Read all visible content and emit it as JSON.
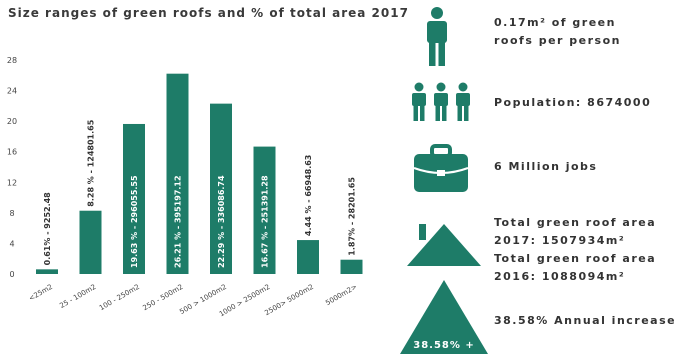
{
  "colors": {
    "accent": "#1e7c68"
  },
  "chart_data": {
    "type": "bar",
    "title": "Size ranges of green roofs and % of total area 2017",
    "xlabel": "",
    "ylabel": "",
    "ylim": [
      0,
      28
    ],
    "yticks": [
      0,
      4,
      8,
      12,
      16,
      20,
      24,
      28
    ],
    "grid": false,
    "categories": [
      "<25m2",
      "25 - 100m2",
      "100 - 250m2",
      "250 - 500m2",
      "500 > 1000m2",
      "1000 > 2500m2",
      "2500> 5000m2",
      "5000m2>"
    ],
    "values": [
      0.61,
      8.28,
      19.63,
      26.21,
      22.29,
      16.67,
      4.44,
      1.87
    ],
    "bar_labels": [
      "0.61% - 9252.48",
      "8.28 % - 124801.65",
      "19.63 % - 296055.55",
      "26.21 % - 395197.12",
      "22.29 % - 336086.74",
      "16.67 % - 251391.28",
      "4.44 % - 66948.63",
      "1.87% - 28201.65"
    ]
  },
  "stats": {
    "per_person": {
      "line1": "0.17m² of green",
      "line2": "roofs per person",
      "icon": "person-icon"
    },
    "population": {
      "text": "Population: 8674000",
      "icon": "people-icon"
    },
    "jobs": {
      "text": "6 Million jobs",
      "icon": "briefcase-icon"
    },
    "area": {
      "line1": "Total green roof area",
      "line2": "2017: 1507934m²",
      "line3": "Total green roof area",
      "line4": "2016: 1088094m²",
      "icon": "house-icon"
    },
    "increase": {
      "text": "38.58% Annual increase",
      "badge": "38.58% +",
      "icon": "triangle-icon"
    }
  }
}
